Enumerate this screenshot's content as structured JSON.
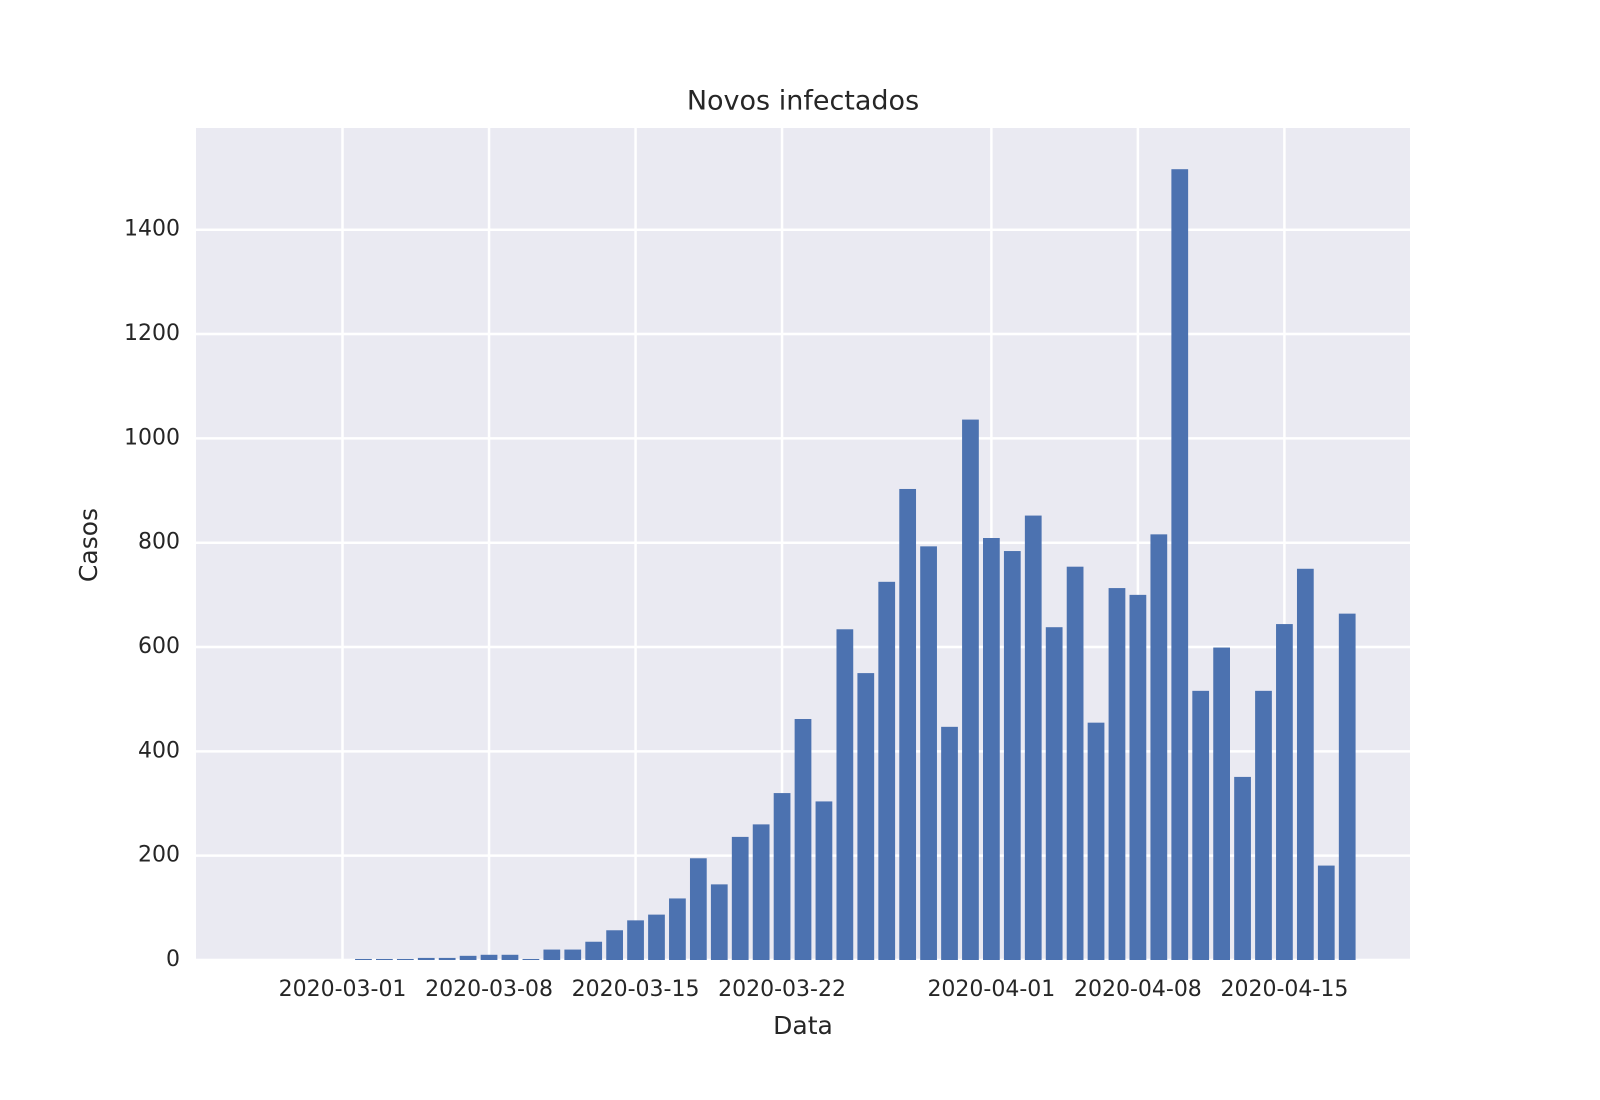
{
  "chart_data": {
    "type": "bar",
    "title": "Novos infectados",
    "x_label": "Data",
    "y_label": "Casos",
    "x": [
      "2020-02-26",
      "2020-02-27",
      "2020-02-28",
      "2020-02-29",
      "2020-03-01",
      "2020-03-02",
      "2020-03-03",
      "2020-03-04",
      "2020-03-05",
      "2020-03-06",
      "2020-03-07",
      "2020-03-08",
      "2020-03-09",
      "2020-03-10",
      "2020-03-11",
      "2020-03-12",
      "2020-03-13",
      "2020-03-14",
      "2020-03-15",
      "2020-03-16",
      "2020-03-17",
      "2020-03-18",
      "2020-03-19",
      "2020-03-20",
      "2020-03-21",
      "2020-03-22",
      "2020-03-23",
      "2020-03-24",
      "2020-03-25",
      "2020-03-26",
      "2020-03-27",
      "2020-03-28",
      "2020-03-29",
      "2020-03-30",
      "2020-03-31",
      "2020-04-01",
      "2020-04-02",
      "2020-04-03",
      "2020-04-04",
      "2020-04-05",
      "2020-04-06",
      "2020-04-07",
      "2020-04-08",
      "2020-04-09",
      "2020-04-10",
      "2020-04-11",
      "2020-04-12",
      "2020-04-13",
      "2020-04-14",
      "2020-04-15",
      "2020-04-16",
      "2020-04-17",
      "2020-04-18"
    ],
    "values": [
      0,
      0,
      0,
      0,
      0,
      2,
      2,
      2,
      4,
      4,
      8,
      10,
      10,
      2,
      20,
      20,
      35,
      57,
      76,
      87,
      118,
      195,
      145,
      236,
      260,
      320,
      462,
      304,
      634,
      550,
      725,
      903,
      793,
      447,
      1036,
      809,
      784,
      852,
      638,
      754,
      455,
      713,
      700,
      816,
      1516,
      516,
      599,
      351,
      516,
      644,
      750,
      181,
      664
    ],
    "color": "#4c72b0",
    "xlim": [
      "2020-02-23",
      "2020-04-21"
    ],
    "xticks": [
      "2020-03-01",
      "2020-03-08",
      "2020-03-15",
      "2020-03-22",
      "2020-04-01",
      "2020-04-08",
      "2020-04-15"
    ],
    "ylim": [
      0,
      1595
    ],
    "yticks": [
      0,
      200,
      400,
      600,
      800,
      1000,
      1200,
      1400
    ],
    "grid": true
  }
}
